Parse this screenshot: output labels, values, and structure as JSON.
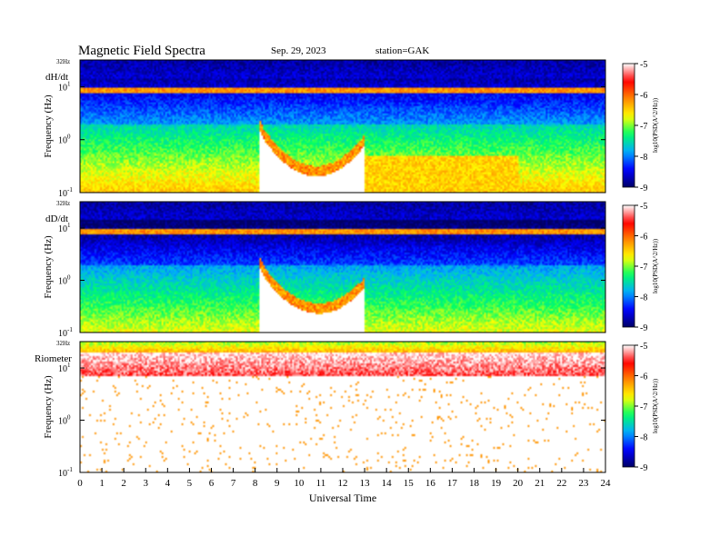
{
  "header": {
    "title": "Magnetic  Field  Spectra",
    "date": "Sep. 29, 2023",
    "station": "station=GAK"
  },
  "colors": {
    "colormap": [
      "#000066",
      "#0000ff",
      "#00aaff",
      "#00ff66",
      "#ffff00",
      "#ff8800",
      "#ff0000",
      "#ffffff"
    ]
  },
  "chart_data": [
    {
      "type": "heatmap",
      "panel_label": "dH/dt",
      "ylabel": "Frequency  (Hz)",
      "y_scale": "log",
      "yticks": [
        {
          "value": 0.1,
          "base": "10",
          "exp": "-1"
        },
        {
          "value": 1,
          "base": "10",
          "exp": "0"
        },
        {
          "value": 10,
          "base": "10",
          "exp": "1"
        }
      ],
      "ytop_label": "32Hz",
      "ylim": [
        0.1,
        32
      ],
      "xlim": [
        0,
        24
      ],
      "colorbar": {
        "label": "log10(PSD(A^2/Hz))",
        "ticks": [
          "-5",
          "-6",
          "-7",
          "-8",
          "-9"
        ],
        "range": [
          -9,
          -5
        ]
      },
      "features": {
        "noise_floor": -7.6,
        "ulf_peak_hours": [
          8.2,
          13.0
        ],
        "ulf_peak_center": 10.8,
        "ulf_peak_freq_hz": 2.0
      }
    },
    {
      "type": "heatmap",
      "panel_label": "dD/dt",
      "ylabel": "Frequency  (Hz)",
      "y_scale": "log",
      "yticks": [
        {
          "value": 0.1,
          "base": "10",
          "exp": "-1"
        },
        {
          "value": 1,
          "base": "10",
          "exp": "0"
        },
        {
          "value": 10,
          "base": "10",
          "exp": "1"
        }
      ],
      "ytop_label": "32Hz",
      "ylim": [
        0.1,
        32
      ],
      "xlim": [
        0,
        24
      ],
      "colorbar": {
        "label": "log10(PSD(A^2/Hz))",
        "ticks": [
          "-5",
          "-6",
          "-7",
          "-8",
          "-9"
        ],
        "range": [
          -9,
          -5
        ]
      },
      "features": {
        "noise_floor": -7.9,
        "ulf_peak_hours": [
          8.2,
          13.0
        ],
        "ulf_peak_center": 10.9,
        "ulf_peak_freq_hz": 2.3
      }
    },
    {
      "type": "heatmap",
      "panel_label": "Riometer",
      "ylabel": "Frequency  (Hz)",
      "y_scale": "log",
      "yticks": [
        {
          "value": 0.1,
          "base": "10",
          "exp": "-1"
        },
        {
          "value": 1,
          "base": "10",
          "exp": "0"
        },
        {
          "value": 10,
          "base": "10",
          "exp": "1"
        }
      ],
      "ytop_label": "32Hz",
      "ylim": [
        0.1,
        32
      ],
      "xlim": [
        0,
        24
      ],
      "colorbar": {
        "label": "log10(PSD(A^2/Hz))",
        "ticks": [
          "-5",
          "-6",
          "-7",
          "-8",
          "-9"
        ],
        "range": [
          -9,
          -5
        ]
      },
      "features": {
        "noise_floor": -5.0,
        "band_top_freq_hz": 20,
        "band_bottom_freq_hz": 7
      }
    }
  ],
  "xaxis": {
    "label": "Universal Time",
    "ticks": [
      "0",
      "1",
      "2",
      "3",
      "4",
      "5",
      "6",
      "7",
      "8",
      "9",
      "10",
      "11",
      "12",
      "13",
      "14",
      "15",
      "16",
      "17",
      "18",
      "19",
      "20",
      "21",
      "22",
      "23",
      "24"
    ]
  }
}
